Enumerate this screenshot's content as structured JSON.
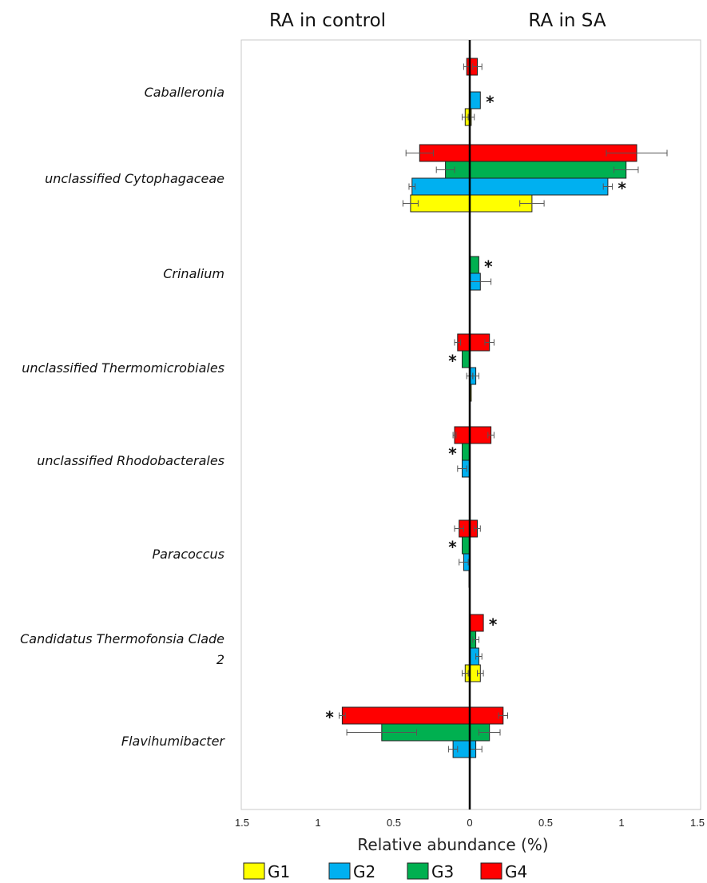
{
  "chart_data": {
    "type": "bar",
    "orientation": "horizontal",
    "side_labels": {
      "left": "RA in control",
      "right": "RA in SA"
    },
    "xlabel": "Relative abundance (%)",
    "xlim": [
      -1.5,
      1.5
    ],
    "x_tick_values": [
      -1.5,
      -1,
      -0.5,
      0,
      0.5,
      1,
      1.5
    ],
    "x_tick_labels": [
      "1.5",
      "1",
      "0.5",
      "0",
      "0.5",
      "1",
      "1.5"
    ],
    "grid": false,
    "legend_position": "bottom",
    "colors": {
      "G1": "#ffff00",
      "G2": "#00b0f0",
      "G3": "#00b050",
      "G4": "#ff0000"
    },
    "categories": [
      "Caballeronia",
      "unclassified Cytophagaceae",
      "Crinalium",
      "unclassified Thermomicrobiales",
      "unclassified Rhodobacterales",
      "Paracoccus",
      [
        "Candidatus Thermofonsia Clade",
        "2"
      ],
      "Flavihumibacter"
    ],
    "series": [
      {
        "name": "G1",
        "left": [
          0.03,
          0.39,
          0,
          0,
          0,
          0.005,
          0.03,
          0
        ],
        "right": [
          0.01,
          0.41,
          0,
          0.01,
          0,
          0,
          0.07,
          0
        ],
        "left_err": [
          0.02,
          0.05,
          0,
          0,
          0,
          0,
          0.02,
          0
        ],
        "right_err": [
          0.02,
          0.08,
          0,
          0,
          0,
          0,
          0.02,
          0
        ]
      },
      {
        "name": "G2",
        "left": [
          0,
          0.38,
          0,
          0,
          0.05,
          0.04,
          0,
          0.11
        ],
        "right": [
          0.07,
          0.91,
          0.07,
          0.04,
          0,
          0,
          0.06,
          0.04
        ],
        "left_err": [
          0,
          0.02,
          0,
          0.02,
          0.03,
          0.03,
          0,
          0.03
        ],
        "right_err": [
          0,
          0.03,
          0.07,
          0.02,
          0,
          0,
          0.02,
          0.04
        ]
      },
      {
        "name": "G3",
        "left": [
          0,
          0.16,
          0,
          0.05,
          0.05,
          0.05,
          0,
          0.58
        ],
        "right": [
          0,
          1.03,
          0.06,
          0,
          0,
          0,
          0.04,
          0.13
        ],
        "left_err": [
          0,
          0.06,
          0,
          0,
          0,
          0,
          0,
          0.23
        ],
        "right_err": [
          0,
          0.08,
          0,
          0,
          0,
          0,
          0.02,
          0.07
        ]
      },
      {
        "name": "G4",
        "left": [
          0.02,
          0.33,
          0,
          0.08,
          0.1,
          0.07,
          0,
          0.84
        ],
        "right": [
          0.05,
          1.1,
          0,
          0.13,
          0.14,
          0.05,
          0.09,
          0.22
        ],
        "left_err": [
          0.02,
          0.09,
          0,
          0.02,
          0.01,
          0.03,
          0,
          0.02
        ],
        "right_err": [
          0.03,
          0.2,
          0,
          0.03,
          0.02,
          0.02,
          0,
          0.03
        ]
      }
    ],
    "significance": [
      {
        "category": 0,
        "series": "G2",
        "side": "right",
        "label": "*"
      },
      {
        "category": 1,
        "series": "G2",
        "side": "right",
        "label": "*"
      },
      {
        "category": 2,
        "series": "G3",
        "side": "right",
        "label": "*"
      },
      {
        "category": 3,
        "series": "G3",
        "side": "left",
        "label": "*"
      },
      {
        "category": 4,
        "series": "G3",
        "side": "left",
        "label": "*"
      },
      {
        "category": 5,
        "series": "G3",
        "side": "left",
        "label": "*"
      },
      {
        "category": 6,
        "series": "G4",
        "side": "right",
        "label": "*"
      },
      {
        "category": 7,
        "series": "G4",
        "side": "left",
        "label": "*"
      }
    ]
  }
}
